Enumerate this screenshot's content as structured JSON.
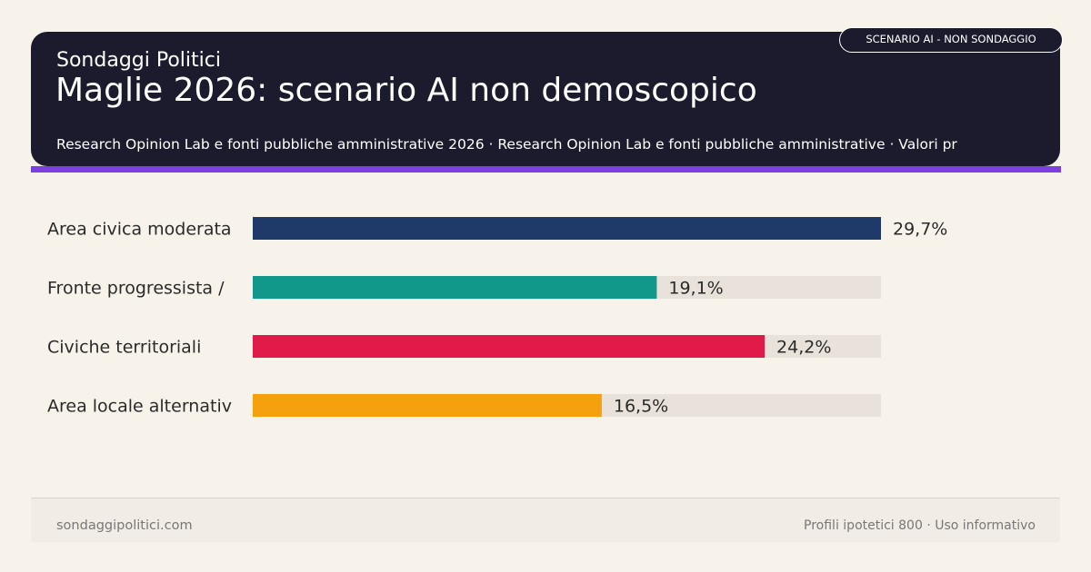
{
  "header": {
    "kicker": "Sondaggi Politici",
    "title": "Maglie 2026: scenario AI non demoscopico",
    "source": "Research Opinion Lab e fonti pubbliche amministrative 2026 · Research Opinion Lab e fonti pubbliche amministrative · Valori pr",
    "badge": "SCENARIO AI - NON SONDAGGIO"
  },
  "chart_data": {
    "type": "bar",
    "orientation": "horizontal",
    "categories": [
      "Area civica moderata",
      "Fronte progressista /",
      "Civiche territoriali",
      "Area locale alternativ"
    ],
    "values": [
      29.7,
      19.1,
      24.2,
      16.5
    ],
    "value_labels": [
      "29,7%",
      "19,1%",
      "24,2%",
      "16,5%"
    ],
    "colors": [
      "#1f3a68",
      "#12988a",
      "#e01b4a",
      "#f5a10d"
    ],
    "track_color": "#e8e2da",
    "xlim": [
      0,
      29.7
    ],
    "grid": false,
    "legend": "none"
  },
  "footer": {
    "left": "sondaggipolitici.com",
    "right": "Profili ipotetici 800 · Uso informativo"
  }
}
